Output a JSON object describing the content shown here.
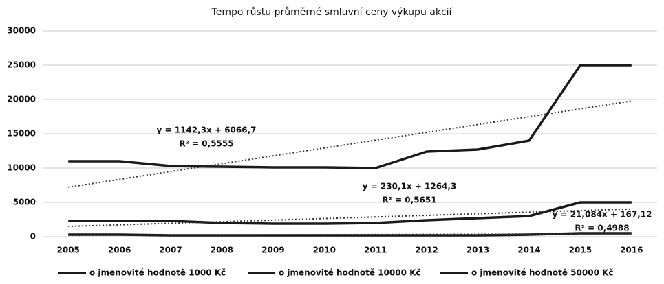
{
  "chart_data": {
    "type": "line",
    "title": "Tempo růstu průměrné smluvní ceny výkupu akcií",
    "categories": [
      "2005",
      "2006",
      "2007",
      "2008",
      "2009",
      "2010",
      "2011",
      "2012",
      "2013",
      "2014",
      "2015",
      "2016"
    ],
    "series": [
      {
        "name": "o jmenovité hodnotě 1000 Kč",
        "color": "#1a1a1a",
        "values": [
          300,
          300,
          200,
          200,
          200,
          200,
          200,
          200,
          200,
          300,
          500,
          500
        ]
      },
      {
        "name": "o jmenovité hodnotě 10000 Kč",
        "color": "#1a1a1a",
        "values": [
          2300,
          2300,
          2300,
          2000,
          1900,
          1900,
          2000,
          2400,
          2700,
          3000,
          5000,
          5000
        ]
      },
      {
        "name": "o jmenovité hodnotě 50000 Kč",
        "color": "#1a1a1a",
        "values": [
          11000,
          11000,
          10300,
          10200,
          10100,
          10100,
          10000,
          12400,
          12700,
          14000,
          25000,
          25000
        ]
      }
    ],
    "trendlines": [
      {
        "series": 2,
        "slope": 1142.3,
        "intercept": 6066.7,
        "equation": "y = 1142,3x + 6066,7",
        "r2": "R² = 0,5555"
      },
      {
        "series": 1,
        "slope": 230.1,
        "intercept": 1264.3,
        "equation": "y = 230,1x + 1264,3",
        "r2": "R² = 0,5651"
      },
      {
        "series": 0,
        "slope": 21.084,
        "intercept": 167.12,
        "equation": "y = 21,084x + 167,12",
        "r2": "R² = 0,4988"
      }
    ],
    "ylim": [
      0,
      30000
    ],
    "yticks": [
      0,
      5000,
      10000,
      15000,
      20000,
      25000,
      30000
    ],
    "grid": true,
    "legend": "bottom"
  }
}
